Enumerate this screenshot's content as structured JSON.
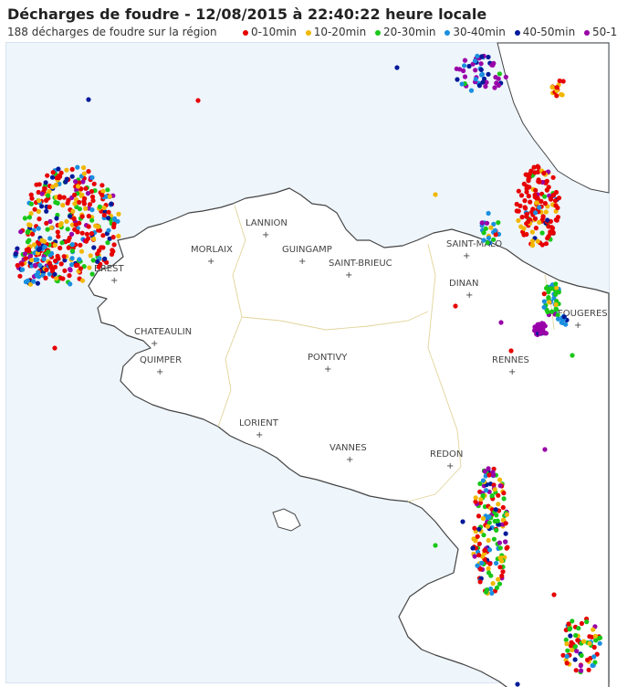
{
  "header": {
    "title": "Décharges de foudre - 12/08/2015 à 22:40:22 heure locale",
    "subtitle": "188 décharges de foudre sur la région"
  },
  "legend": [
    {
      "label": "0-10min",
      "color": "#e60000"
    },
    {
      "label": "10-20min",
      "color": "#f2b700"
    },
    {
      "label": "20-30min",
      "color": "#19c719"
    },
    {
      "label": "30-40min",
      "color": "#1a8fe0"
    },
    {
      "label": "40-50min",
      "color": "#001a99"
    },
    {
      "label": "50-1",
      "color": "#9900a8"
    }
  ],
  "colors": {
    "sea": "#eef5fb",
    "land": "#ffffff",
    "coast": "#444444",
    "boundary": "#e1d39a"
  },
  "cities": [
    {
      "name": "LANNION"
    },
    {
      "name": "MORLAIX"
    },
    {
      "name": "GUINGAMP"
    },
    {
      "name": "SAINT-BRIEUC"
    },
    {
      "name": "BREST"
    },
    {
      "name": "SAINT-MALO"
    },
    {
      "name": "DINAN"
    },
    {
      "name": "FOUGERES"
    },
    {
      "name": "CHATEAULIN"
    },
    {
      "name": "QUIMPER"
    },
    {
      "name": "PONTIVY"
    },
    {
      "name": "RENNES"
    },
    {
      "name": "LORIENT"
    },
    {
      "name": "VANNES"
    },
    {
      "name": "REDON"
    }
  ]
}
